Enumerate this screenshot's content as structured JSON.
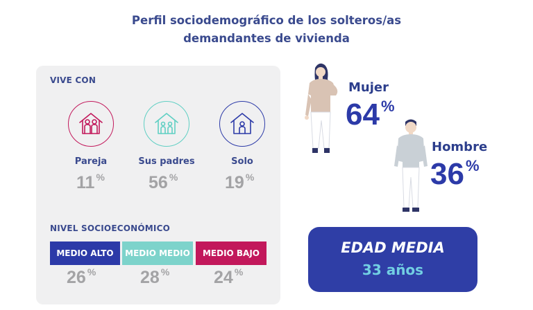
{
  "title": {
    "line1": "Perfil sociodemográfico de los solteros/as",
    "line2": "demandantes de vivienda"
  },
  "vive_con": {
    "label": "VIVE CON",
    "items": [
      {
        "label": "Pareja",
        "value": "11",
        "unit": "%",
        "icon": "couple-house-icon",
        "color": "#c2185b"
      },
      {
        "label": "Sus padres",
        "value": "56",
        "unit": "%",
        "icon": "family-house-icon",
        "color": "#5fcfc3"
      },
      {
        "label": "Solo",
        "value": "19",
        "unit": "%",
        "icon": "single-house-icon",
        "color": "#2c3aa8"
      }
    ]
  },
  "nivel": {
    "label": "NIVEL SOCIOECONÓMICO",
    "items": [
      {
        "label": "MEDIO ALTO",
        "value": "26",
        "unit": "%",
        "color": "#2c3aa8"
      },
      {
        "label": "MEDIO MEDIO",
        "value": "28",
        "unit": "%",
        "color": "#7dd3cb"
      },
      {
        "label": "MEDIO BAJO",
        "value": "24",
        "unit": "%",
        "color": "#c2185b"
      }
    ]
  },
  "gender": {
    "mujer": {
      "label": "Mujer",
      "value": "64",
      "unit": "%"
    },
    "hombre": {
      "label": "Hombre",
      "value": "36",
      "unit": "%"
    }
  },
  "age": {
    "title": "EDAD MEDIA",
    "value": "33 años"
  }
}
